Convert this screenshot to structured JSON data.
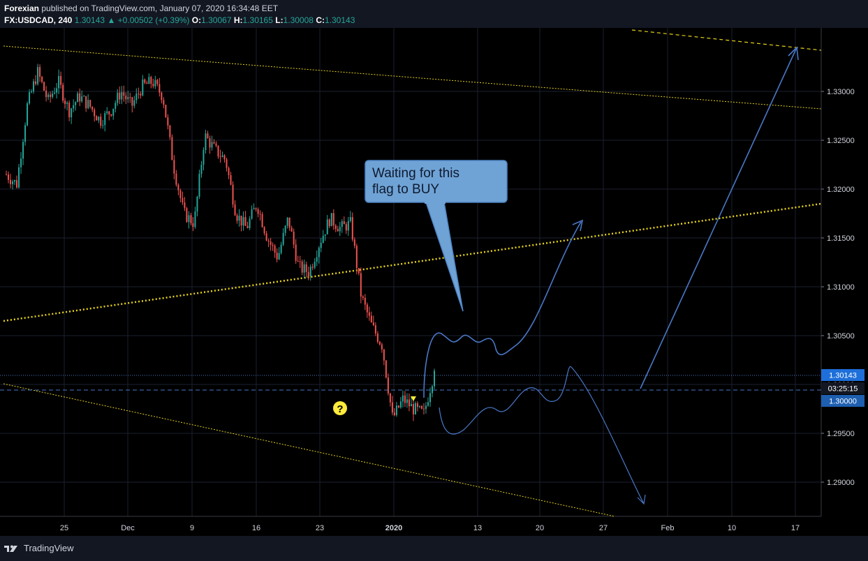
{
  "header": {
    "author": "Forexian",
    "published_text": "published on TradingView.com, January 07, 2020 16:34:48 EET",
    "symbol": "FX:USDCAD, 240",
    "last": "1.30143",
    "change": "+0.00502 (+0.39%)",
    "open_label": "O:",
    "open": "1.30067",
    "high_label": "H:",
    "high": "1.30165",
    "low_label": "L:",
    "low": "1.30008",
    "close_label": "C:",
    "close": "1.30143"
  },
  "footer": {
    "brand": "TradingView"
  },
  "annotations": {
    "callout_line1": "Waiting for this",
    "callout_line2": "flag to BUY",
    "question_mark": "?"
  },
  "price_scale": {
    "current_price": "1.30143",
    "countdown": "03:25:15",
    "level": "1.30000"
  },
  "colors": {
    "background": "#131722",
    "up_candle": "#26a69a",
    "down_candle": "#ef5350",
    "trendline": "#e6d21a",
    "drawing": "#4a78c8",
    "callout_fill": "#6fa3d6",
    "price_label": "#1e6fd9"
  },
  "chart_data": {
    "type": "candlestick",
    "symbol": "FX:USDCAD",
    "interval": "240",
    "ylim": [
      1.2865,
      1.3365
    ],
    "y_ticks": [
      "1.29000",
      "1.29500",
      "1.30000",
      "1.30500",
      "1.31000",
      "1.31500",
      "1.32000",
      "1.32500",
      "1.33000"
    ],
    "x_ticks": [
      "25",
      "Dec",
      "9",
      "16",
      "23",
      "2020",
      "13",
      "20",
      "27",
      "Feb",
      "10",
      "17"
    ],
    "grid": true,
    "close_path": [
      1.3215,
      1.3205,
      1.3285,
      1.332,
      1.329,
      1.331,
      1.328,
      1.3295,
      1.3285,
      1.327,
      1.328,
      1.33,
      1.3285,
      1.3305,
      1.331,
      1.3295,
      1.3225,
      1.3175,
      1.3165,
      1.3255,
      1.324,
      1.323,
      1.3175,
      1.316,
      1.3185,
      1.315,
      1.313,
      1.317,
      1.312,
      1.3115,
      1.3145,
      1.317,
      1.316,
      1.3165,
      1.309,
      1.306,
      1.304,
      1.2965,
      1.2985,
      1.2975,
      1.297,
      1.3014
    ]
  }
}
